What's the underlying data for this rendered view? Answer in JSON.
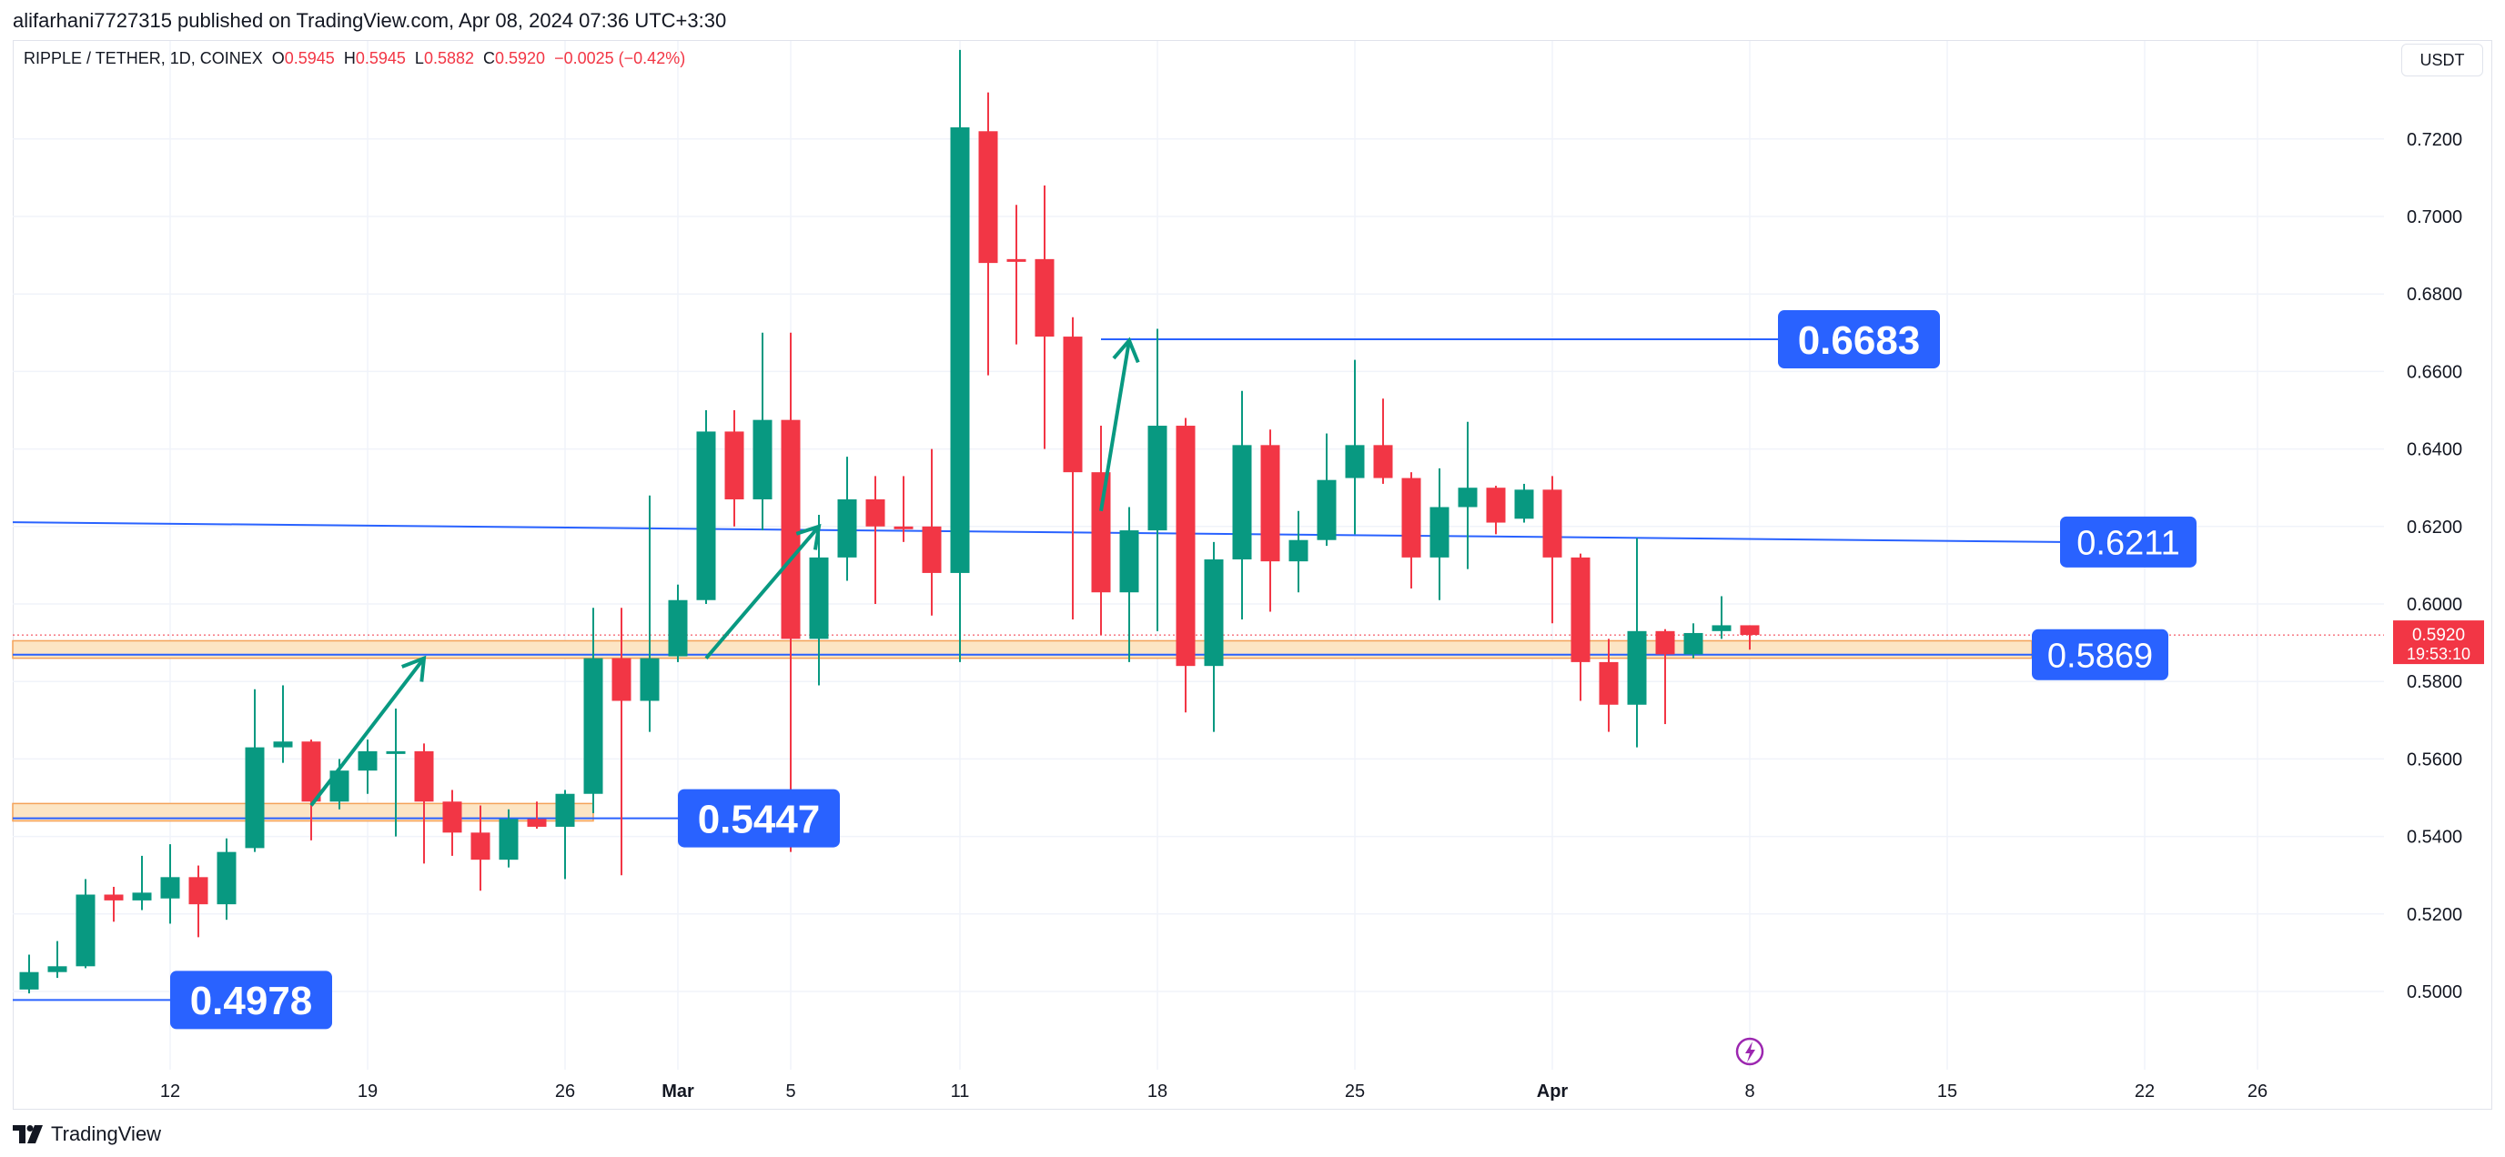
{
  "header": {
    "publisher_line": "alifarhani7727315 published on TradingView.com, Apr 08, 2024 07:36 UTC+3:30"
  },
  "legend": {
    "symbol": "RIPPLE / TETHER, 1D, COINEX",
    "open_label": "O",
    "open_value": "0.5945",
    "high_label": "H",
    "high_value": "0.5945",
    "low_label": "L",
    "low_value": "0.5882",
    "close_label": "C",
    "close_value": "0.5920",
    "change": "−0.0025 (−0.42%)"
  },
  "currency_button": "USDT",
  "footer": {
    "brand": "TradingView"
  },
  "colors": {
    "up": "#089981",
    "down": "#f23645",
    "level_line": "#2962ff",
    "label_bg": "#2962ff",
    "zone_fill": "#fce5c4",
    "zone_border": "#f4a259"
  },
  "chart_data": {
    "type": "candlestick",
    "symbol": "RIPPLE / TETHER",
    "interval": "1D",
    "exchange": "COINEX",
    "y_axis": {
      "position": "right",
      "ylim": [
        0.482,
        0.744
      ],
      "ticks": [
        0.5,
        0.52,
        0.54,
        0.56,
        0.58,
        0.6,
        0.62,
        0.64,
        0.66,
        0.68,
        0.7,
        0.72
      ]
    },
    "x_axis": {
      "xlim": [
        "2024-02-07",
        "2024-04-30"
      ],
      "ticks": [
        {
          "date": "2024-02-12",
          "label": "12"
        },
        {
          "date": "2024-02-19",
          "label": "19"
        },
        {
          "date": "2024-02-26",
          "label": "26"
        },
        {
          "date": "2024-03-01",
          "label": "Mar"
        },
        {
          "date": "2024-03-05",
          "label": "5"
        },
        {
          "date": "2024-03-11",
          "label": "11"
        },
        {
          "date": "2024-03-18",
          "label": "18"
        },
        {
          "date": "2024-03-25",
          "label": "25"
        },
        {
          "date": "2024-04-01",
          "label": "Apr"
        },
        {
          "date": "2024-04-08",
          "label": "8"
        },
        {
          "date": "2024-04-15",
          "label": "15"
        },
        {
          "date": "2024-04-22",
          "label": "22"
        },
        {
          "date": "2024-04-26",
          "label": "26"
        }
      ]
    },
    "grid": true,
    "candles": [
      {
        "date": "2024-02-07",
        "o": 0.5005,
        "h": 0.5095,
        "l": 0.4995,
        "c": 0.505
      },
      {
        "date": "2024-02-08",
        "o": 0.505,
        "h": 0.513,
        "l": 0.5035,
        "c": 0.5065
      },
      {
        "date": "2024-02-09",
        "o": 0.5065,
        "h": 0.529,
        "l": 0.506,
        "c": 0.525
      },
      {
        "date": "2024-02-10",
        "o": 0.525,
        "h": 0.527,
        "l": 0.518,
        "c": 0.5235
      },
      {
        "date": "2024-02-11",
        "o": 0.5235,
        "h": 0.535,
        "l": 0.521,
        "c": 0.5255
      },
      {
        "date": "2024-02-12",
        "o": 0.524,
        "h": 0.538,
        "l": 0.5175,
        "c": 0.5295
      },
      {
        "date": "2024-02-13",
        "o": 0.5295,
        "h": 0.5325,
        "l": 0.514,
        "c": 0.5225
      },
      {
        "date": "2024-02-14",
        "o": 0.5225,
        "h": 0.5395,
        "l": 0.5185,
        "c": 0.536
      },
      {
        "date": "2024-02-15",
        "o": 0.537,
        "h": 0.578,
        "l": 0.536,
        "c": 0.563
      },
      {
        "date": "2024-02-16",
        "o": 0.563,
        "h": 0.579,
        "l": 0.559,
        "c": 0.5645
      },
      {
        "date": "2024-02-17",
        "o": 0.5645,
        "h": 0.565,
        "l": 0.539,
        "c": 0.549
      },
      {
        "date": "2024-02-18",
        "o": 0.549,
        "h": 0.56,
        "l": 0.547,
        "c": 0.557
      },
      {
        "date": "2024-02-19",
        "o": 0.557,
        "h": 0.565,
        "l": 0.551,
        "c": 0.562
      },
      {
        "date": "2024-02-20",
        "o": 0.562,
        "h": 0.573,
        "l": 0.54,
        "c": 0.562
      },
      {
        "date": "2024-02-21",
        "o": 0.562,
        "h": 0.564,
        "l": 0.533,
        "c": 0.549
      },
      {
        "date": "2024-02-22",
        "o": 0.549,
        "h": 0.552,
        "l": 0.535,
        "c": 0.541
      },
      {
        "date": "2024-02-23",
        "o": 0.541,
        "h": 0.548,
        "l": 0.526,
        "c": 0.534
      },
      {
        "date": "2024-02-24",
        "o": 0.534,
        "h": 0.547,
        "l": 0.532,
        "c": 0.5445
      },
      {
        "date": "2024-02-25",
        "o": 0.5445,
        "h": 0.549,
        "l": 0.542,
        "c": 0.5425
      },
      {
        "date": "2024-02-26",
        "o": 0.5425,
        "h": 0.552,
        "l": 0.529,
        "c": 0.551
      },
      {
        "date": "2024-02-27",
        "o": 0.551,
        "h": 0.599,
        "l": 0.546,
        "c": 0.586
      },
      {
        "date": "2024-02-28",
        "o": 0.586,
        "h": 0.599,
        "l": 0.53,
        "c": 0.575
      },
      {
        "date": "2024-02-29",
        "o": 0.575,
        "h": 0.628,
        "l": 0.567,
        "c": 0.586
      },
      {
        "date": "2024-03-01",
        "o": 0.5865,
        "h": 0.605,
        "l": 0.585,
        "c": 0.601
      },
      {
        "date": "2024-03-02",
        "o": 0.601,
        "h": 0.65,
        "l": 0.6,
        "c": 0.6445
      },
      {
        "date": "2024-03-03",
        "o": 0.6445,
        "h": 0.65,
        "l": 0.62,
        "c": 0.627
      },
      {
        "date": "2024-03-04",
        "o": 0.627,
        "h": 0.67,
        "l": 0.619,
        "c": 0.6475
      },
      {
        "date": "2024-03-05",
        "o": 0.6475,
        "h": 0.67,
        "l": 0.536,
        "c": 0.591
      },
      {
        "date": "2024-03-06",
        "o": 0.591,
        "h": 0.623,
        "l": 0.579,
        "c": 0.612
      },
      {
        "date": "2024-03-07",
        "o": 0.612,
        "h": 0.638,
        "l": 0.606,
        "c": 0.627
      },
      {
        "date": "2024-03-08",
        "o": 0.627,
        "h": 0.633,
        "l": 0.6,
        "c": 0.62
      },
      {
        "date": "2024-03-09",
        "o": 0.62,
        "h": 0.633,
        "l": 0.616,
        "c": 0.6195
      },
      {
        "date": "2024-03-10",
        "o": 0.62,
        "h": 0.64,
        "l": 0.597,
        "c": 0.608
      },
      {
        "date": "2024-03-11",
        "o": 0.608,
        "h": 0.743,
        "l": 0.585,
        "c": 0.723
      },
      {
        "date": "2024-03-12",
        "o": 0.722,
        "h": 0.732,
        "l": 0.659,
        "c": 0.688
      },
      {
        "date": "2024-03-13",
        "o": 0.689,
        "h": 0.703,
        "l": 0.667,
        "c": 0.6885
      },
      {
        "date": "2024-03-14",
        "o": 0.689,
        "h": 0.708,
        "l": 0.64,
        "c": 0.669
      },
      {
        "date": "2024-03-15",
        "o": 0.669,
        "h": 0.674,
        "l": 0.596,
        "c": 0.634
      },
      {
        "date": "2024-03-16",
        "o": 0.634,
        "h": 0.646,
        "l": 0.592,
        "c": 0.603
      },
      {
        "date": "2024-03-17",
        "o": 0.603,
        "h": 0.625,
        "l": 0.585,
        "c": 0.619
      },
      {
        "date": "2024-03-18",
        "o": 0.619,
        "h": 0.671,
        "l": 0.593,
        "c": 0.646
      },
      {
        "date": "2024-03-19",
        "o": 0.646,
        "h": 0.648,
        "l": 0.572,
        "c": 0.584
      },
      {
        "date": "2024-03-20",
        "o": 0.584,
        "h": 0.616,
        "l": 0.567,
        "c": 0.6115
      },
      {
        "date": "2024-03-21",
        "o": 0.6115,
        "h": 0.655,
        "l": 0.596,
        "c": 0.641
      },
      {
        "date": "2024-03-22",
        "o": 0.641,
        "h": 0.645,
        "l": 0.598,
        "c": 0.611
      },
      {
        "date": "2024-03-23",
        "o": 0.611,
        "h": 0.624,
        "l": 0.603,
        "c": 0.6165
      },
      {
        "date": "2024-03-24",
        "o": 0.6165,
        "h": 0.644,
        "l": 0.615,
        "c": 0.632
      },
      {
        "date": "2024-03-25",
        "o": 0.6325,
        "h": 0.663,
        "l": 0.618,
        "c": 0.641
      },
      {
        "date": "2024-03-26",
        "o": 0.641,
        "h": 0.653,
        "l": 0.631,
        "c": 0.6325
      },
      {
        "date": "2024-03-27",
        "o": 0.6325,
        "h": 0.634,
        "l": 0.604,
        "c": 0.612
      },
      {
        "date": "2024-03-28",
        "o": 0.612,
        "h": 0.635,
        "l": 0.601,
        "c": 0.625
      },
      {
        "date": "2024-03-29",
        "o": 0.625,
        "h": 0.647,
        "l": 0.609,
        "c": 0.63
      },
      {
        "date": "2024-03-30",
        "o": 0.63,
        "h": 0.6305,
        "l": 0.618,
        "c": 0.621
      },
      {
        "date": "2024-03-31",
        "o": 0.622,
        "h": 0.631,
        "l": 0.621,
        "c": 0.6295
      },
      {
        "date": "2024-04-01",
        "o": 0.6295,
        "h": 0.633,
        "l": 0.595,
        "c": 0.612
      },
      {
        "date": "2024-04-02",
        "o": 0.612,
        "h": 0.613,
        "l": 0.575,
        "c": 0.585
      },
      {
        "date": "2024-04-03",
        "o": 0.585,
        "h": 0.591,
        "l": 0.567,
        "c": 0.574
      },
      {
        "date": "2024-04-04",
        "o": 0.574,
        "h": 0.617,
        "l": 0.563,
        "c": 0.593
      },
      {
        "date": "2024-04-05",
        "o": 0.593,
        "h": 0.5935,
        "l": 0.569,
        "c": 0.587
      },
      {
        "date": "2024-04-06",
        "o": 0.587,
        "h": 0.595,
        "l": 0.586,
        "c": 0.5925
      },
      {
        "date": "2024-04-07",
        "o": 0.593,
        "h": 0.602,
        "l": 0.591,
        "c": 0.5945
      },
      {
        "date": "2024-04-08",
        "o": 0.5945,
        "h": 0.5945,
        "l": 0.5882,
        "c": 0.592
      }
    ],
    "horizontal_levels": [
      {
        "value": 0.6683,
        "label": "0.6683",
        "from": "2024-03-16",
        "to": "2024-04-09"
      },
      {
        "value": 0.6211,
        "label": "0.6211",
        "from": "2024-02-07",
        "to": "2024-04-19",
        "end_value": 0.616
      },
      {
        "value": 0.5869,
        "label": "0.5869",
        "from": "2024-02-07",
        "to": "2024-04-18"
      },
      {
        "value": 0.5447,
        "label": "0.5447",
        "from": "2024-02-07",
        "to": "2024-03-01"
      },
      {
        "value": 0.4978,
        "label": "0.4978",
        "from": "2024-02-07",
        "to": "2024-02-12"
      }
    ],
    "zones": [
      {
        "from_value": 0.586,
        "to_value": 0.5905,
        "from": "2024-02-07",
        "to": "2024-04-18"
      },
      {
        "from_value": 0.544,
        "to_value": 0.5485,
        "from": "2024-02-07",
        "to": "2024-02-27"
      }
    ],
    "arrows": [
      {
        "from_date": "2024-02-17",
        "from_value": 0.548,
        "to_date": "2024-02-21",
        "to_value": 0.586
      },
      {
        "from_date": "2024-03-02",
        "from_value": 0.586,
        "to_date": "2024-03-06",
        "to_value": 0.62
      },
      {
        "from_date": "2024-03-16",
        "from_value": 0.624,
        "to_date": "2024-03-17",
        "to_value": 0.668
      }
    ],
    "last_price": {
      "value": 0.592,
      "label": "0.5920",
      "countdown": "19:53:10"
    }
  }
}
